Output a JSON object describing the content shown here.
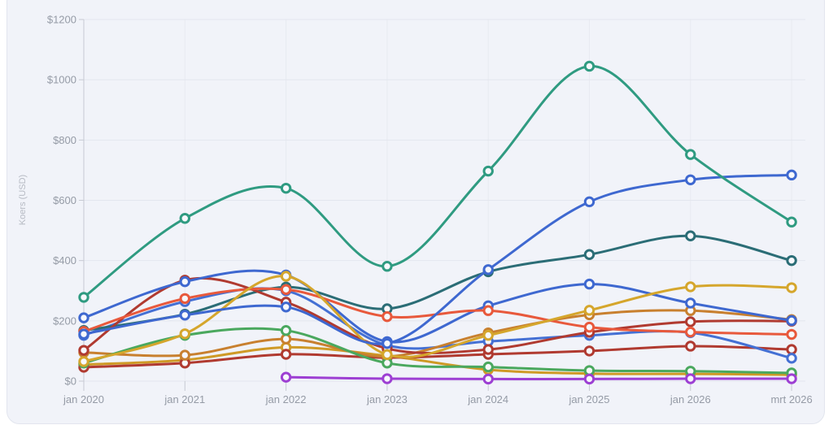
{
  "axis": {
    "y_title": "Koers (USD)",
    "y_tick_labels": [
      "$0",
      "$200",
      "$400",
      "$600",
      "$800",
      "$1000",
      "$1200"
    ],
    "x_tick_labels": [
      "jan 2020",
      "jan 2021",
      "jan 2022",
      "jan 2023",
      "jan 2024",
      "jan 2025",
      "jan 2026",
      "mrt 2026"
    ]
  },
  "colors": {
    "card_background": "#f1f3f9",
    "card_border": "#e2e5ee",
    "grid_horizontal": "#e3e6ee",
    "grid_vertical": "#e8eaf1",
    "axis_line": "#c7cad3",
    "tick_mark": "#c7cad3",
    "marker_fill": "#f7f8fc"
  },
  "chart_data": {
    "type": "line",
    "title": "",
    "xlabel": "",
    "ylabel": "Koers (USD)",
    "ylim": [
      0,
      1200
    ],
    "y_ticks": [
      {
        "value": 0,
        "label": "$0"
      },
      {
        "value": 200,
        "label": "$200"
      },
      {
        "value": 400,
        "label": "$400"
      },
      {
        "value": 600,
        "label": "$600"
      },
      {
        "value": 800,
        "label": "$800"
      },
      {
        "value": 1000,
        "label": "$1000"
      },
      {
        "value": 1200,
        "label": "$1200"
      }
    ],
    "categories": [
      "jan 2020",
      "jan 2021",
      "jan 2022",
      "jan 2023",
      "jan 2024",
      "jan 2025",
      "jan 2026",
      "mrt 2026"
    ],
    "grid": true,
    "legend_position": "none",
    "curve": "smooth",
    "marker": "open-circle",
    "series": [
      {
        "name": "series-gold-low",
        "color": "#cf9a26",
        "values": [
          55,
          70,
          112,
          84,
          38,
          25,
          24,
          21
        ]
      },
      {
        "name": "series-red-low",
        "color": "#b03a30",
        "values": [
          46,
          60,
          89,
          78,
          89,
          100,
          116,
          105
        ]
      },
      {
        "name": "series-blue-c",
        "color": "#4470d4",
        "values": [
          152,
          264,
          300,
          119,
          132,
          152,
          161,
          76
        ]
      },
      {
        "name": "series-ochre",
        "color": "#c8802f",
        "values": [
          95,
          86,
          140,
          82,
          160,
          220,
          234,
          204
        ]
      },
      {
        "name": "series-dark-teal",
        "color": "#2b6d76",
        "values": [
          168,
          222,
          312,
          240,
          363,
          420,
          482,
          400
        ]
      },
      {
        "name": "series-red-a",
        "color": "#b03a30",
        "values": [
          102,
          335,
          262,
          108,
          105,
          162,
          197,
          199
        ]
      },
      {
        "name": "series-blue-b",
        "color": "#3e68d0",
        "values": [
          210,
          330,
          352,
          131,
          250,
          322,
          259,
          201
        ]
      },
      {
        "name": "series-orange",
        "color": "#e8593c",
        "values": [
          165,
          274,
          304,
          214,
          234,
          179,
          163,
          155
        ]
      },
      {
        "name": "series-green",
        "color": "#4aa85e",
        "values": [
          60,
          152,
          168,
          60,
          47,
          35,
          33,
          27
        ]
      },
      {
        "name": "series-gold",
        "color": "#d5a62c",
        "values": [
          65,
          157,
          348,
          88,
          152,
          235,
          313,
          310
        ]
      },
      {
        "name": "series-blue-a",
        "color": "#3e68d0",
        "values": [
          156,
          219,
          246,
          125,
          370,
          595,
          668,
          684
        ]
      },
      {
        "name": "series-sea-green",
        "color": "#2f9b81",
        "values": [
          278,
          540,
          640,
          381,
          697,
          1045,
          752,
          528
        ]
      },
      {
        "name": "series-purple",
        "color": "#9d3fd3",
        "values": [
          null,
          null,
          13,
          8,
          7,
          7,
          8,
          8
        ]
      }
    ]
  }
}
